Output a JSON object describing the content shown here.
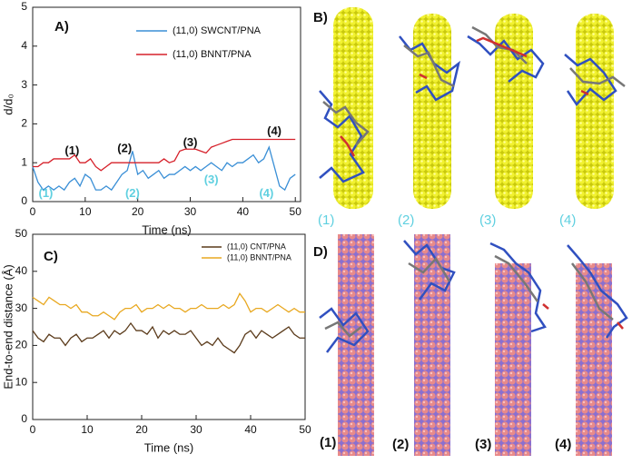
{
  "chart_data": [
    {
      "type": "line",
      "title": "A)",
      "xlabel": "Time (ns)",
      "ylabel": "d/d₀",
      "xlim": [
        0,
        51
      ],
      "ylim": [
        0,
        5
      ],
      "xticks": [
        0,
        10,
        20,
        30,
        40,
        50
      ],
      "yticks": [
        0,
        1,
        2,
        3,
        4,
        5
      ],
      "legend": "upper right",
      "x": [
        0,
        1,
        2,
        3,
        4,
        5,
        6,
        7,
        8,
        9,
        10,
        11,
        12,
        13,
        14,
        15,
        16,
        17,
        18,
        19,
        20,
        21,
        22,
        23,
        24,
        25,
        26,
        27,
        28,
        29,
        30,
        31,
        32,
        33,
        34,
        35,
        36,
        37,
        38,
        39,
        40,
        41,
        42,
        43,
        44,
        45,
        46,
        47,
        48,
        49,
        50
      ],
      "series": [
        {
          "name": "(11,0) SWCNT/PNA",
          "color": "#3a8fd6",
          "values": [
            0.9,
            0.5,
            0.3,
            0.4,
            0.3,
            0.4,
            0.3,
            0.5,
            0.6,
            0.4,
            0.7,
            0.6,
            0.3,
            0.3,
            0.4,
            0.3,
            0.5,
            0.7,
            0.8,
            1.3,
            0.7,
            0.8,
            0.6,
            0.7,
            0.8,
            0.6,
            0.7,
            0.7,
            0.8,
            0.9,
            0.8,
            0.9,
            0.8,
            0.9,
            1.0,
            0.9,
            0.8,
            1.0,
            0.9,
            1.0,
            1.0,
            1.1,
            1.2,
            1.0,
            1.1,
            1.4,
            0.9,
            0.4,
            0.3,
            0.6,
            0.7
          ]
        },
        {
          "name": "(11,0) BNNT/PNA",
          "color": "#d6202a",
          "values": [
            0.9,
            0.9,
            1.0,
            1.0,
            1.1,
            1.1,
            1.1,
            1.1,
            1.2,
            1.0,
            1.0,
            1.1,
            0.9,
            0.8,
            0.9,
            1.0,
            1.0,
            1.0,
            1.0,
            1.0,
            1.0,
            1.0,
            1.0,
            1.0,
            1.0,
            1.1,
            1.0,
            1.05,
            1.3,
            1.35,
            1.35,
            1.35,
            1.3,
            1.25,
            1.4,
            1.45,
            1.5,
            1.55,
            1.6,
            1.6,
            1.6,
            1.6,
            1.6,
            1.6,
            1.6,
            1.6,
            1.6,
            1.6,
            1.6,
            1.6,
            1.6
          ]
        }
      ],
      "annotations": [
        {
          "text": "(1)",
          "x": 7.5,
          "y": 1.3,
          "color": "#111111"
        },
        {
          "text": "(2)",
          "x": 17.5,
          "y": 1.35,
          "color": "#111111"
        },
        {
          "text": "(3)",
          "x": 30,
          "y": 1.5,
          "color": "#111111"
        },
        {
          "text": "(4)",
          "x": 46,
          "y": 1.8,
          "color": "#111111"
        },
        {
          "text": "(1)",
          "x": 2.5,
          "y": 0.2,
          "color": "#5fd0e0"
        },
        {
          "text": "(2)",
          "x": 19,
          "y": 0.2,
          "color": "#5fd0e0"
        },
        {
          "text": "(3)",
          "x": 34,
          "y": 0.55,
          "color": "#5fd0e0"
        },
        {
          "text": "(4)",
          "x": 44.5,
          "y": 0.2,
          "color": "#5fd0e0"
        }
      ]
    },
    {
      "type": "line",
      "title": "C)",
      "xlabel": "Time (ns)",
      "ylabel": "End-to-end distance  (Å)",
      "xlim": [
        0,
        50
      ],
      "ylim": [
        0,
        50
      ],
      "xticks": [
        0,
        10,
        20,
        30,
        40,
        50
      ],
      "yticks": [
        0,
        10,
        20,
        30,
        40,
        50
      ],
      "legend": "upper right",
      "x": [
        0,
        1,
        2,
        3,
        4,
        5,
        6,
        7,
        8,
        9,
        10,
        11,
        12,
        13,
        14,
        15,
        16,
        17,
        18,
        19,
        20,
        21,
        22,
        23,
        24,
        25,
        26,
        27,
        28,
        29,
        30,
        31,
        32,
        33,
        34,
        35,
        36,
        37,
        38,
        39,
        40,
        41,
        42,
        43,
        44,
        45,
        46,
        47,
        48,
        49,
        50
      ],
      "series": [
        {
          "name": "(11,0) CNT/PNA",
          "color": "#5a3a1a",
          "values": [
            24,
            22,
            21,
            23,
            22,
            22,
            20,
            22,
            23,
            21,
            22,
            22,
            23,
            24,
            22,
            24,
            23,
            24,
            26,
            24,
            24,
            23,
            25,
            22,
            24,
            23,
            24,
            23,
            23,
            24,
            22,
            20,
            21,
            20,
            22,
            20,
            19,
            18,
            20,
            23,
            24,
            22,
            24,
            23,
            22,
            23,
            24,
            25,
            23,
            22,
            22
          ]
        },
        {
          "name": "(11,0) BNNT/PNA",
          "color": "#e8a820",
          "values": [
            33,
            32,
            31,
            33,
            32,
            31,
            31,
            30,
            31,
            29,
            29,
            28,
            28,
            29,
            28,
            27,
            29,
            30,
            30,
            31,
            29,
            30,
            30,
            31,
            30,
            31,
            30,
            30,
            29,
            30,
            30,
            31,
            30,
            30,
            30,
            31,
            30,
            31,
            34,
            32,
            29,
            30,
            30,
            29,
            30,
            31,
            30,
            29,
            30,
            29,
            29
          ]
        }
      ],
      "annotations": []
    }
  ],
  "images": [
    {
      "label": "B)",
      "captions": [
        "(1)",
        "(2)",
        "(3)",
        "(4)"
      ]
    },
    {
      "label": "D)",
      "captions": [
        "(1)",
        "(2)",
        "(3)",
        "(4)"
      ]
    }
  ]
}
